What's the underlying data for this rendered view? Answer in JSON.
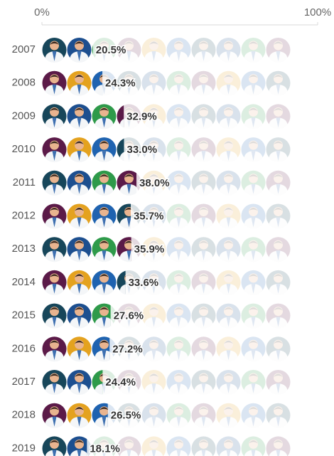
{
  "chart_data": {
    "type": "pictogram",
    "categories": [
      "2007",
      "2008",
      "2009",
      "2010",
      "2011",
      "2012",
      "2013",
      "2014",
      "2015",
      "2016",
      "2017",
      "2018",
      "2019"
    ],
    "values": [
      20.5,
      24.3,
      32.9,
      33.0,
      38.0,
      35.7,
      35.9,
      33.6,
      27.6,
      27.2,
      24.4,
      26.5,
      18.1
    ],
    "value_labels": [
      "20.5%",
      "24.3%",
      "32.9%",
      "33.0%",
      "38.0%",
      "35.7%",
      "35.9%",
      "33.6%",
      "27.6%",
      "27.2%",
      "24.4%",
      "26.5%",
      "18.1%"
    ],
    "xlim": [
      0,
      100
    ],
    "xticks": [
      {
        "value": 0,
        "label": "0%"
      },
      {
        "value": 100,
        "label": "100%"
      }
    ],
    "icon_colors": [
      "#17465a",
      "#1d4f8f",
      "#2e9a4a",
      "#5b1a48",
      "#e4a21f",
      "#1f63b0"
    ]
  }
}
